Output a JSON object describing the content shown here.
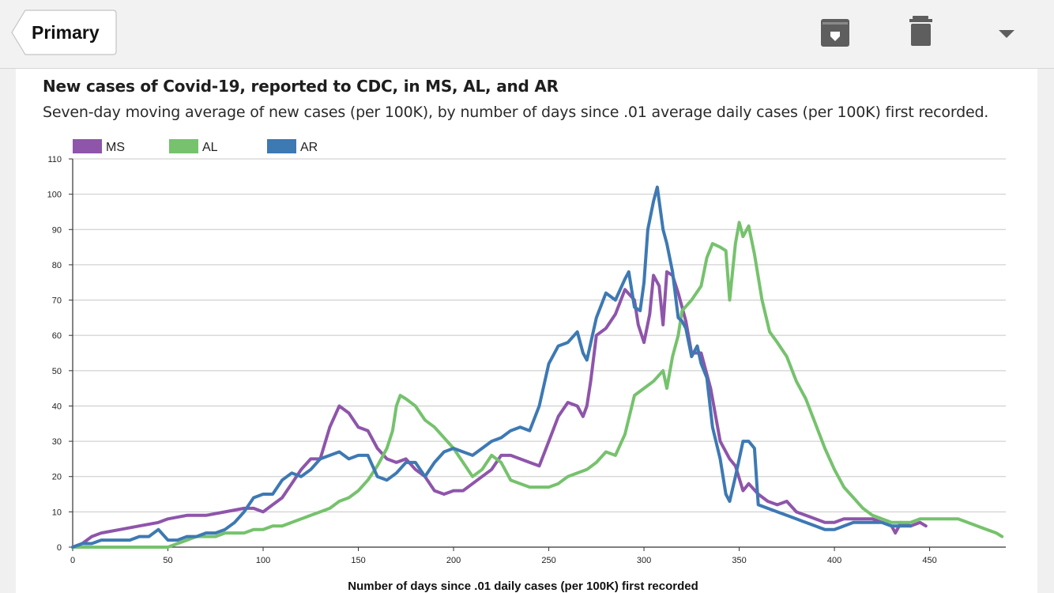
{
  "toolbar": {
    "back_label": "Primary",
    "icons": [
      "archive-icon",
      "trash-icon",
      "dropdown-caret-icon"
    ]
  },
  "chart_data": {
    "type": "line",
    "title": "New cases of Covid-19, reported to CDC, in MS, AL, and AR",
    "subtitle": "Seven-day moving average of new cases (per 100K), by number of days since .01 average daily cases (per 100K) first recorded.",
    "xlabel": "Number of days since .01 daily cases (per 100K) first recorded",
    "ylabel": "",
    "xlim": [
      0,
      490
    ],
    "ylim": [
      0,
      110
    ],
    "xticks": [
      0,
      50,
      100,
      150,
      200,
      250,
      300,
      350,
      400,
      450
    ],
    "yticks": [
      0,
      10,
      20,
      30,
      40,
      50,
      60,
      70,
      80,
      90,
      100,
      110
    ],
    "grid": "horizontal",
    "legend": "top-left",
    "series": [
      {
        "name": "MS",
        "color": "#8e55aa",
        "points": [
          [
            0,
            0
          ],
          [
            5,
            1
          ],
          [
            10,
            3
          ],
          [
            15,
            4
          ],
          [
            25,
            5
          ],
          [
            35,
            6
          ],
          [
            45,
            7
          ],
          [
            50,
            8
          ],
          [
            60,
            9
          ],
          [
            70,
            9
          ],
          [
            80,
            10
          ],
          [
            90,
            11
          ],
          [
            95,
            11
          ],
          [
            100,
            10
          ],
          [
            105,
            12
          ],
          [
            110,
            14
          ],
          [
            115,
            18
          ],
          [
            120,
            22
          ],
          [
            125,
            25
          ],
          [
            130,
            25
          ],
          [
            135,
            34
          ],
          [
            140,
            40
          ],
          [
            145,
            38
          ],
          [
            150,
            34
          ],
          [
            155,
            33
          ],
          [
            160,
            28
          ],
          [
            165,
            25
          ],
          [
            170,
            24
          ],
          [
            175,
            25
          ],
          [
            180,
            22
          ],
          [
            185,
            20
          ],
          [
            190,
            16
          ],
          [
            195,
            15
          ],
          [
            200,
            16
          ],
          [
            205,
            16
          ],
          [
            210,
            18
          ],
          [
            215,
            20
          ],
          [
            220,
            22
          ],
          [
            225,
            26
          ],
          [
            230,
            26
          ],
          [
            235,
            25
          ],
          [
            240,
            24
          ],
          [
            245,
            23
          ],
          [
            250,
            30
          ],
          [
            255,
            37
          ],
          [
            260,
            41
          ],
          [
            265,
            40
          ],
          [
            268,
            37
          ],
          [
            270,
            40
          ],
          [
            272,
            47
          ],
          [
            275,
            60
          ],
          [
            280,
            62
          ],
          [
            285,
            66
          ],
          [
            290,
            73
          ],
          [
            295,
            70
          ],
          [
            297,
            63
          ],
          [
            300,
            58
          ],
          [
            303,
            66
          ],
          [
            305,
            77
          ],
          [
            308,
            74
          ],
          [
            310,
            63
          ],
          [
            312,
            78
          ],
          [
            315,
            77
          ],
          [
            318,
            72
          ],
          [
            322,
            64
          ],
          [
            325,
            55
          ],
          [
            330,
            55
          ],
          [
            335,
            45
          ],
          [
            340,
            30
          ],
          [
            345,
            25
          ],
          [
            348,
            23
          ],
          [
            352,
            16
          ],
          [
            355,
            18
          ],
          [
            360,
            15
          ],
          [
            365,
            13
          ],
          [
            370,
            12
          ],
          [
            375,
            13
          ],
          [
            380,
            10
          ],
          [
            385,
            9
          ],
          [
            390,
            8
          ],
          [
            395,
            7
          ],
          [
            400,
            7
          ],
          [
            405,
            8
          ],
          [
            410,
            8
          ],
          [
            415,
            8
          ],
          [
            420,
            8
          ],
          [
            425,
            7
          ],
          [
            430,
            6
          ],
          [
            432,
            4
          ],
          [
            435,
            7
          ],
          [
            440,
            6
          ],
          [
            445,
            7
          ],
          [
            448,
            6
          ]
        ]
      },
      {
        "name": "AL",
        "color": "#76c26d",
        "points": [
          [
            0,
            0
          ],
          [
            10,
            0
          ],
          [
            20,
            0
          ],
          [
            30,
            0
          ],
          [
            40,
            0
          ],
          [
            50,
            0
          ],
          [
            55,
            1
          ],
          [
            60,
            2
          ],
          [
            65,
            3
          ],
          [
            70,
            3
          ],
          [
            75,
            3
          ],
          [
            80,
            4
          ],
          [
            85,
            4
          ],
          [
            90,
            4
          ],
          [
            95,
            5
          ],
          [
            100,
            5
          ],
          [
            105,
            6
          ],
          [
            110,
            6
          ],
          [
            115,
            7
          ],
          [
            120,
            8
          ],
          [
            125,
            9
          ],
          [
            130,
            10
          ],
          [
            135,
            11
          ],
          [
            140,
            13
          ],
          [
            145,
            14
          ],
          [
            150,
            16
          ],
          [
            155,
            19
          ],
          [
            160,
            23
          ],
          [
            165,
            28
          ],
          [
            168,
            33
          ],
          [
            170,
            40
          ],
          [
            172,
            43
          ],
          [
            175,
            42
          ],
          [
            180,
            40
          ],
          [
            185,
            36
          ],
          [
            190,
            34
          ],
          [
            195,
            31
          ],
          [
            200,
            28
          ],
          [
            205,
            24
          ],
          [
            210,
            20
          ],
          [
            215,
            22
          ],
          [
            220,
            26
          ],
          [
            225,
            24
          ],
          [
            230,
            19
          ],
          [
            235,
            18
          ],
          [
            240,
            17
          ],
          [
            245,
            17
          ],
          [
            250,
            17
          ],
          [
            255,
            18
          ],
          [
            260,
            20
          ],
          [
            265,
            21
          ],
          [
            270,
            22
          ],
          [
            275,
            24
          ],
          [
            280,
            27
          ],
          [
            285,
            26
          ],
          [
            290,
            32
          ],
          [
            295,
            43
          ],
          [
            300,
            45
          ],
          [
            305,
            47
          ],
          [
            310,
            50
          ],
          [
            312,
            45
          ],
          [
            315,
            54
          ],
          [
            318,
            60
          ],
          [
            320,
            67
          ],
          [
            325,
            70
          ],
          [
            330,
            74
          ],
          [
            333,
            82
          ],
          [
            336,
            86
          ],
          [
            340,
            85
          ],
          [
            343,
            84
          ],
          [
            345,
            70
          ],
          [
            348,
            86
          ],
          [
            350,
            92
          ],
          [
            352,
            88
          ],
          [
            355,
            91
          ],
          [
            358,
            83
          ],
          [
            362,
            70
          ],
          [
            366,
            61
          ],
          [
            370,
            58
          ],
          [
            375,
            54
          ],
          [
            380,
            47
          ],
          [
            385,
            42
          ],
          [
            390,
            35
          ],
          [
            395,
            28
          ],
          [
            400,
            22
          ],
          [
            405,
            17
          ],
          [
            410,
            14
          ],
          [
            415,
            11
          ],
          [
            420,
            9
          ],
          [
            425,
            8
          ],
          [
            430,
            7
          ],
          [
            435,
            7
          ],
          [
            440,
            7
          ],
          [
            445,
            8
          ],
          [
            450,
            8
          ],
          [
            455,
            8
          ],
          [
            460,
            8
          ],
          [
            465,
            8
          ],
          [
            470,
            7
          ],
          [
            475,
            6
          ],
          [
            480,
            5
          ],
          [
            485,
            4
          ],
          [
            488,
            3
          ]
        ]
      },
      {
        "name": "AR",
        "color": "#3d79b3",
        "points": [
          [
            0,
            0
          ],
          [
            5,
            1
          ],
          [
            10,
            1
          ],
          [
            15,
            2
          ],
          [
            20,
            2
          ],
          [
            25,
            2
          ],
          [
            30,
            2
          ],
          [
            35,
            3
          ],
          [
            40,
            3
          ],
          [
            45,
            5
          ],
          [
            50,
            2
          ],
          [
            55,
            2
          ],
          [
            60,
            3
          ],
          [
            65,
            3
          ],
          [
            70,
            4
          ],
          [
            75,
            4
          ],
          [
            80,
            5
          ],
          [
            85,
            7
          ],
          [
            90,
            10
          ],
          [
            95,
            14
          ],
          [
            100,
            15
          ],
          [
            105,
            15
          ],
          [
            110,
            19
          ],
          [
            115,
            21
          ],
          [
            120,
            20
          ],
          [
            125,
            22
          ],
          [
            130,
            25
          ],
          [
            135,
            26
          ],
          [
            140,
            27
          ],
          [
            145,
            25
          ],
          [
            150,
            26
          ],
          [
            155,
            26
          ],
          [
            160,
            20
          ],
          [
            165,
            19
          ],
          [
            170,
            21
          ],
          [
            175,
            24
          ],
          [
            180,
            24
          ],
          [
            185,
            20
          ],
          [
            190,
            24
          ],
          [
            195,
            27
          ],
          [
            200,
            28
          ],
          [
            205,
            27
          ],
          [
            210,
            26
          ],
          [
            215,
            28
          ],
          [
            220,
            30
          ],
          [
            225,
            31
          ],
          [
            230,
            33
          ],
          [
            235,
            34
          ],
          [
            240,
            33
          ],
          [
            245,
            40
          ],
          [
            250,
            52
          ],
          [
            255,
            57
          ],
          [
            260,
            58
          ],
          [
            265,
            61
          ],
          [
            268,
            55
          ],
          [
            270,
            53
          ],
          [
            275,
            65
          ],
          [
            280,
            72
          ],
          [
            285,
            70
          ],
          [
            290,
            76
          ],
          [
            292,
            78
          ],
          [
            295,
            68
          ],
          [
            298,
            67
          ],
          [
            300,
            75
          ],
          [
            302,
            90
          ],
          [
            305,
            98
          ],
          [
            307,
            102
          ],
          [
            310,
            90
          ],
          [
            312,
            86
          ],
          [
            315,
            78
          ],
          [
            318,
            65
          ],
          [
            320,
            64
          ],
          [
            322,
            62
          ],
          [
            325,
            54
          ],
          [
            328,
            57
          ],
          [
            330,
            52
          ],
          [
            333,
            48
          ],
          [
            336,
            34
          ],
          [
            340,
            25
          ],
          [
            343,
            15
          ],
          [
            345,
            13
          ],
          [
            348,
            20
          ],
          [
            350,
            25
          ],
          [
            352,
            30
          ],
          [
            355,
            30
          ],
          [
            358,
            28
          ],
          [
            360,
            12
          ],
          [
            365,
            11
          ],
          [
            370,
            10
          ],
          [
            375,
            9
          ],
          [
            380,
            8
          ],
          [
            385,
            7
          ],
          [
            390,
            6
          ],
          [
            395,
            5
          ],
          [
            400,
            5
          ],
          [
            405,
            6
          ],
          [
            410,
            7
          ],
          [
            415,
            7
          ],
          [
            420,
            7
          ],
          [
            425,
            7
          ],
          [
            430,
            6
          ],
          [
            435,
            6
          ],
          [
            440,
            6
          ]
        ]
      }
    ]
  }
}
